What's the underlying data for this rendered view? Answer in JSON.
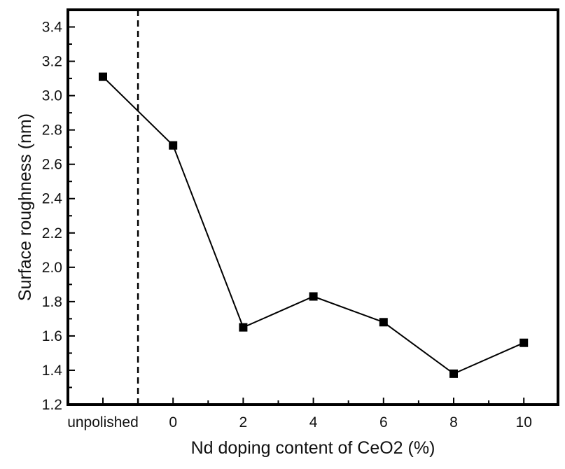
{
  "chart_data": {
    "type": "line",
    "title": "",
    "xlabel": "Nd doping content of CeO2 (%)",
    "ylabel": "Surface roughness (nm)",
    "categories": [
      "unpolished",
      "0",
      "2",
      "4",
      "6",
      "8",
      "10"
    ],
    "series": [
      {
        "values": [
          3.11,
          2.71,
          1.65,
          1.83,
          1.68,
          1.38,
          1.56
        ]
      }
    ],
    "ylim": [
      1.2,
      3.5
    ],
    "y_ticks": [
      "1.2",
      "1.4",
      "1.6",
      "1.8",
      "2.0",
      "2.2",
      "2.4",
      "2.6",
      "2.8",
      "3.0",
      "3.2",
      "3.4"
    ],
    "separator": {
      "type": "dashed-vertical",
      "between": [
        "unpolished",
        "0"
      ]
    },
    "grid": false,
    "legend": "none",
    "colors": {
      "line": "#000000",
      "marker": "#000000",
      "frame": "#000000"
    }
  }
}
